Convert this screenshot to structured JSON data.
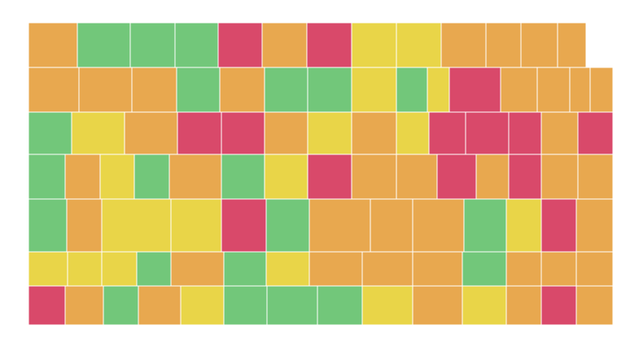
{
  "county_colors": [
    "#e8a84f",
    "#72c77a",
    "#72c77a",
    "#72c77a",
    "#d9496a",
    "#e8a84f",
    "#d9496a",
    "#e9d548",
    "#e9d548",
    "#e8a84f",
    "#e8a84f",
    "#e8a84f",
    "#e8a84f",
    "#e8a84f",
    "#e8a84f",
    "#e8a84f",
    "#72c77a",
    "#e8a84f",
    "#72c77a",
    "#72c77a",
    "#e9d548",
    "#72c77a",
    "#e9d548",
    "#d9496a",
    "#e8a84f",
    "#e8a84f",
    "#e8a84f",
    "#e8a84f",
    "#72c77a",
    "#e9d548",
    "#e8a84f",
    "#d9496a",
    "#d9496a",
    "#e8a84f",
    "#e9d548",
    "#e8a84f",
    "#e9d548",
    "#d9496a",
    "#d9496a",
    "#d9496a",
    "#e8a84f",
    "#d9496a",
    "#72c77a",
    "#e8a84f",
    "#e9d548",
    "#72c77a",
    "#e8a84f",
    "#72c77a",
    "#e9d548",
    "#d9496a",
    "#e8a84f",
    "#e8a84f",
    "#d9496a",
    "#e8a84f",
    "#d9496a",
    "#e8a84f",
    "#e8a84f",
    "#72c77a",
    "#e8a84f",
    "#e9d548",
    "#e9d548",
    "#d9496a",
    "#72c77a",
    "#e8a84f",
    "#e8a84f",
    "#e8a84f",
    "#72c77a",
    "#e9d548",
    "#d9496a",
    "#e8a84f",
    "#e9d548",
    "#e9d548",
    "#e9d548",
    "#72c77a",
    "#e8a84f",
    "#72c77a",
    "#e9d548",
    "#e8a84f",
    "#e8a84f",
    "#e8a84f",
    "#72c77a",
    "#e8a84f",
    "#e8a84f",
    "#e8a84f",
    "#d9496a",
    "#e8a84f",
    "#72c77a",
    "#e8a84f",
    "#e9d548",
    "#72c77a",
    "#72c77a",
    "#72c77a",
    "#e9d548",
    "#e8a84f",
    "#e9d548",
    "#e8a84f",
    "#d9496a",
    "#e8a84f"
  ]
}
